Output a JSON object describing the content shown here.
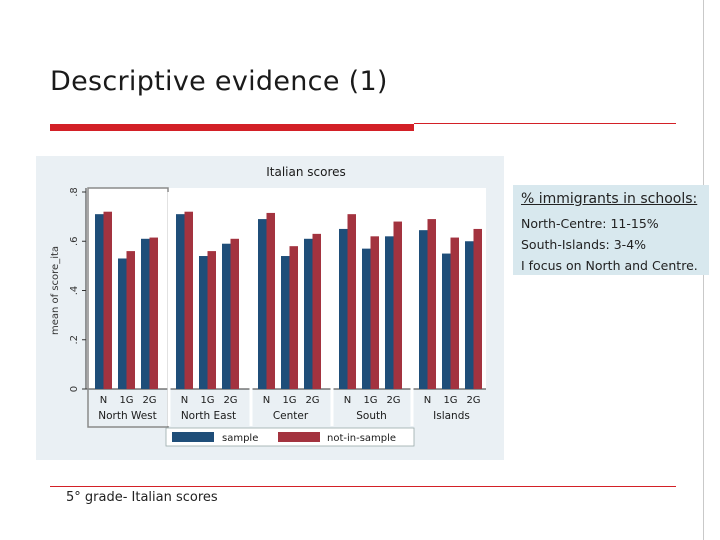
{
  "slide": {
    "title": "Descriptive evidence (1)",
    "footnote": "5° grade- Italian scores"
  },
  "colors": {
    "accent_red": "#d32027",
    "sample": "#1f4e79",
    "not_in_sample": "#a3333f",
    "panel_bg": "#eaf0f4",
    "info_bg": "#d8e8ee"
  },
  "info": {
    "heading": "% immigrants in schools:",
    "lines": [
      "North-Centre: 11-15%",
      "South-Islands: 3-4%",
      "I focus on North and Centre."
    ]
  },
  "chart_data": {
    "type": "bar",
    "title": "Italian scores",
    "ylabel": "mean of score_ita",
    "ylim": [
      0,
      0.8
    ],
    "yticks": [
      0,
      0.2,
      0.4,
      0.6,
      0.8
    ],
    "ytick_labels": [
      "0",
      ".2",
      ".4",
      ".6",
      ".8"
    ],
    "bar_labels": [
      "N",
      "1G",
      "2G"
    ],
    "groups": [
      {
        "name": "North West",
        "sample": [
          0.71,
          0.53,
          0.61
        ],
        "not_in_sample": [
          0.72,
          0.56,
          0.615
        ],
        "highlighted": true
      },
      {
        "name": "North East",
        "sample": [
          0.71,
          0.54,
          0.59
        ],
        "not_in_sample": [
          0.72,
          0.56,
          0.61
        ],
        "highlighted": false
      },
      {
        "name": "Center",
        "sample": [
          0.69,
          0.54,
          0.61
        ],
        "not_in_sample": [
          0.715,
          0.58,
          0.63
        ],
        "highlighted": false
      },
      {
        "name": "South",
        "sample": [
          0.65,
          0.57,
          0.62
        ],
        "not_in_sample": [
          0.71,
          0.62,
          0.68
        ],
        "highlighted": false
      },
      {
        "name": "Islands",
        "sample": [
          0.645,
          0.55,
          0.6
        ],
        "not_in_sample": [
          0.69,
          0.615,
          0.65
        ],
        "highlighted": false
      }
    ],
    "legend": [
      "sample",
      "not-in-sample"
    ],
    "legend_position": "bottom",
    "grid": false
  }
}
